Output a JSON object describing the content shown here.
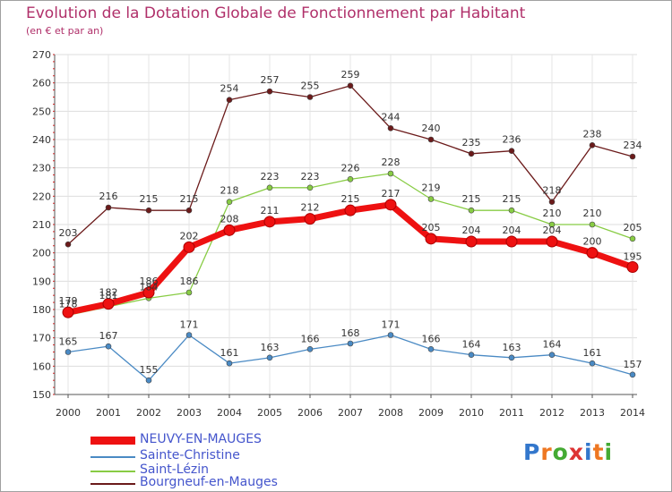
{
  "title": "Evolution de la Dotation Globale de Fonctionnement par Habitant",
  "subtitle": "(en € et par an)",
  "logo": "Proxiti",
  "chart_data": {
    "type": "line",
    "x": [
      "2000",
      "2001",
      "2002",
      "2003",
      "2004",
      "2005",
      "2006",
      "2007",
      "2008",
      "2009",
      "2010",
      "2011",
      "2012",
      "2013",
      "2014"
    ],
    "ylim": [
      150,
      270
    ],
    "yticks": [
      150,
      160,
      170,
      180,
      190,
      200,
      210,
      220,
      230,
      240,
      250,
      260,
      270
    ],
    "grid": true,
    "legend_position": "bottom-left",
    "series": [
      {
        "name": "Bourgneuf-en-Mauges",
        "color": "#6b1a1a",
        "values": [
          203,
          216,
          215,
          215,
          254,
          257,
          255,
          259,
          244,
          240,
          235,
          236,
          218,
          238,
          234
        ]
      },
      {
        "name": "Saint-Lézin",
        "color": "#88cc44",
        "values": [
          178,
          181,
          184,
          186,
          218,
          223,
          223,
          226,
          228,
          219,
          215,
          215,
          210,
          210,
          205
        ]
      },
      {
        "name": "Sainte-Christine",
        "color": "#4a8ac4",
        "values": [
          165,
          167,
          155,
          171,
          161,
          163,
          166,
          168,
          171,
          166,
          164,
          163,
          164,
          161,
          157
        ]
      },
      {
        "name": "NEUVY-EN-MAUGES",
        "color": "#ee1111",
        "values": [
          179,
          182,
          186,
          202,
          208,
          211,
          212,
          215,
          217,
          205,
          204,
          204,
          204,
          200,
          195
        ]
      }
    ]
  }
}
